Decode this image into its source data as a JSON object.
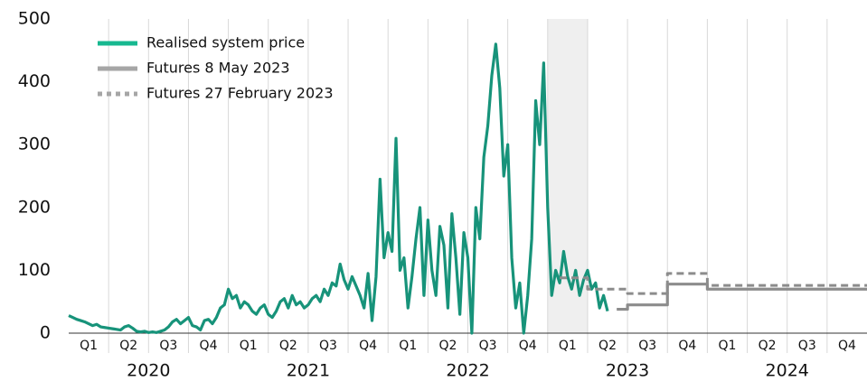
{
  "chart_data": {
    "type": "line",
    "xlim": [
      0,
      20
    ],
    "ylim": [
      0,
      500
    ],
    "yticks": [
      0,
      100,
      200,
      300,
      400,
      500
    ],
    "xticks": [
      {
        "value": 0.5,
        "label": "Q1"
      },
      {
        "value": 1.5,
        "label": "Q2"
      },
      {
        "value": 2.5,
        "label": "Q3"
      },
      {
        "value": 3.5,
        "label": "Q4"
      },
      {
        "value": 4.5,
        "label": "Q1"
      },
      {
        "value": 5.5,
        "label": "Q2"
      },
      {
        "value": 6.5,
        "label": "Q3"
      },
      {
        "value": 7.5,
        "label": "Q4"
      },
      {
        "value": 8.5,
        "label": "Q1"
      },
      {
        "value": 9.5,
        "label": "Q2"
      },
      {
        "value": 10.5,
        "label": "Q3"
      },
      {
        "value": 11.5,
        "label": "Q4"
      },
      {
        "value": 12.5,
        "label": "Q1"
      },
      {
        "value": 13.5,
        "label": "Q2"
      },
      {
        "value": 14.5,
        "label": "Q3"
      },
      {
        "value": 15.5,
        "label": "Q4"
      },
      {
        "value": 16.5,
        "label": "Q1"
      },
      {
        "value": 17.5,
        "label": "Q2"
      },
      {
        "value": 18.5,
        "label": "Q3"
      },
      {
        "value": 19.5,
        "label": "Q4"
      }
    ],
    "year_ticks": [
      {
        "value": 2,
        "label": "2020"
      },
      {
        "value": 6,
        "label": "2021"
      },
      {
        "value": 10,
        "label": "2022"
      },
      {
        "value": 14,
        "label": "2023"
      },
      {
        "value": 18,
        "label": "2024"
      }
    ],
    "grid": true,
    "legend": "upper left",
    "highlight_span": [
      12,
      13
    ],
    "series": [
      {
        "name": "Realised system price",
        "color": "#17937a",
        "legend_color": "#17b890",
        "dash": false,
        "x": [
          0,
          0.1,
          0.2,
          0.3,
          0.4,
          0.5,
          0.6,
          0.7,
          0.8,
          0.9,
          1,
          1.1,
          1.2,
          1.3,
          1.4,
          1.5,
          1.6,
          1.7,
          1.8,
          1.9,
          2,
          2.1,
          2.2,
          2.3,
          2.4,
          2.5,
          2.6,
          2.7,
          2.8,
          2.9,
          3,
          3.1,
          3.2,
          3.3,
          3.4,
          3.5,
          3.6,
          3.7,
          3.8,
          3.9,
          4,
          4.1,
          4.2,
          4.3,
          4.4,
          4.5,
          4.6,
          4.7,
          4.8,
          4.9,
          5,
          5.1,
          5.2,
          5.3,
          5.4,
          5.5,
          5.6,
          5.7,
          5.8,
          5.9,
          6,
          6.1,
          6.2,
          6.3,
          6.4,
          6.5,
          6.6,
          6.7,
          6.8,
          6.9,
          7,
          7.1,
          7.2,
          7.3,
          7.4,
          7.5,
          7.6,
          7.7,
          7.8,
          7.9,
          8,
          8.1,
          8.2,
          8.3,
          8.4,
          8.5,
          8.6,
          8.7,
          8.8,
          8.9,
          9,
          9.1,
          9.2,
          9.3,
          9.4,
          9.5,
          9.6,
          9.7,
          9.8,
          9.9,
          10,
          10.1,
          10.2,
          10.3,
          10.4,
          10.5,
          10.6,
          10.7,
          10.8,
          10.9,
          11,
          11.1,
          11.2,
          11.3,
          11.4,
          11.5,
          11.6,
          11.7,
          11.8,
          11.9,
          12,
          12.1,
          12.2,
          12.3,
          12.4,
          12.5,
          12.6,
          12.7,
          12.8,
          12.9,
          13,
          13.1,
          13.2,
          13.3,
          13.4,
          13.5
        ],
        "values": [
          28,
          25,
          22,
          20,
          18,
          15,
          12,
          14,
          10,
          9,
          8,
          7,
          6,
          5,
          10,
          12,
          8,
          3,
          2,
          3,
          1,
          2,
          1,
          3,
          5,
          10,
          18,
          22,
          15,
          20,
          25,
          12,
          10,
          5,
          20,
          22,
          15,
          25,
          40,
          45,
          70,
          55,
          60,
          40,
          50,
          45,
          35,
          30,
          40,
          45,
          30,
          25,
          35,
          50,
          55,
          40,
          60,
          45,
          50,
          40,
          45,
          55,
          60,
          50,
          70,
          60,
          80,
          75,
          110,
          85,
          70,
          90,
          75,
          60,
          40,
          95,
          20,
          90,
          245,
          120,
          160,
          130,
          310,
          100,
          120,
          40,
          90,
          150,
          200,
          60,
          180,
          100,
          60,
          170,
          140,
          40,
          190,
          120,
          30,
          160,
          120,
          0,
          200,
          150,
          280,
          330,
          410,
          460,
          390,
          250,
          300,
          120,
          40,
          80,
          0,
          60,
          150,
          370,
          300,
          430,
          200,
          60,
          100,
          80,
          130,
          90,
          70,
          100,
          60,
          85,
          100,
          70,
          80,
          40,
          60,
          35
        ]
      },
      {
        "name": "Futures 8 May 2023",
        "color": "#8c8c8c",
        "legend_color": "#a6a6a6",
        "dash": false,
        "x": [
          13.73,
          14,
          14,
          15,
          15,
          16,
          16,
          20
        ],
        "values": [
          38,
          38,
          45,
          45,
          78,
          78,
          70,
          70
        ]
      },
      {
        "name": "Futures 27 February 2023",
        "color": "#8c8c8c",
        "legend_color": "#a6a6a6",
        "dash": true,
        "x": [
          12.3,
          13,
          13,
          14,
          14,
          15,
          15,
          16,
          16,
          20
        ],
        "values": [
          88,
          88,
          70,
          70,
          63,
          63,
          95,
          95,
          76,
          76
        ]
      }
    ]
  }
}
